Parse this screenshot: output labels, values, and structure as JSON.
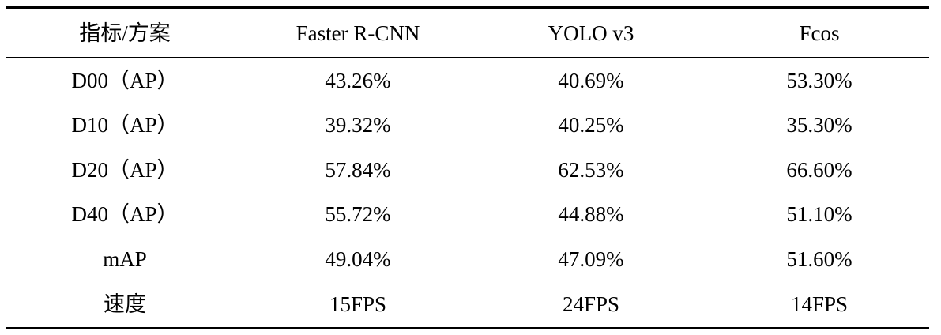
{
  "table": {
    "headers": [
      "指标/方案",
      "Faster R-CNN",
      "YOLO v3",
      "Fcos"
    ],
    "rows": [
      [
        "D00（AP）",
        "43.26%",
        "40.69%",
        "53.30%"
      ],
      [
        "D10（AP）",
        "39.32%",
        "40.25%",
        "35.30%"
      ],
      [
        "D20（AP）",
        "57.84%",
        "62.53%",
        "66.60%"
      ],
      [
        "D40（AP）",
        "55.72%",
        "44.88%",
        "51.10%"
      ],
      [
        "mAP",
        "49.04%",
        "47.09%",
        "51.60%"
      ],
      [
        "速度",
        "15FPS",
        "24FPS",
        "14FPS"
      ]
    ]
  }
}
